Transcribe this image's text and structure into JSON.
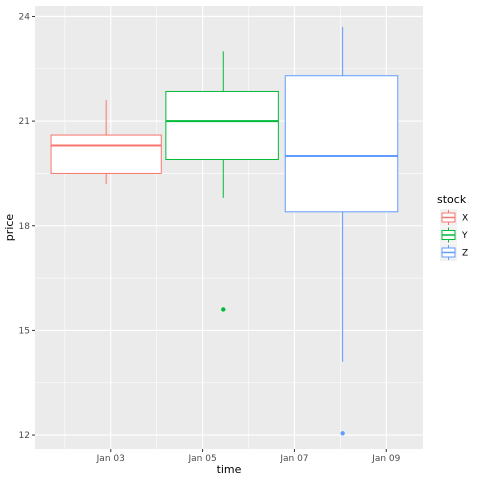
{
  "chart_data": {
    "type": "boxplot",
    "xlabel": "time",
    "ylabel": "price",
    "x_tick_labels": [
      "Jan 03",
      "Jan 05",
      "Jan 07",
      "Jan 09"
    ],
    "x_tick_values": [
      3,
      5,
      7,
      9
    ],
    "xlim": [
      1.35,
      9.8
    ],
    "y_ticks": [
      12,
      15,
      18,
      21,
      24
    ],
    "ylim": [
      11.6,
      24.3
    ],
    "grid": true,
    "legend": {
      "title": "stock",
      "placement": "right",
      "entries": [
        "X",
        "Y",
        "Z"
      ]
    },
    "series": [
      {
        "name": "X",
        "color": "#F8766D",
        "x_range": [
          1.7,
          4.1
        ],
        "x_center": 2.9,
        "whisker_low": 19.2,
        "q1": 19.5,
        "median": 20.3,
        "q3": 20.6,
        "whisker_high": 21.6,
        "outliers": []
      },
      {
        "name": "Y",
        "color": "#00BA38",
        "x_range": [
          4.2,
          6.65
        ],
        "x_center": 5.45,
        "whisker_low": 18.8,
        "q1": 19.9,
        "median": 21.0,
        "q3": 21.85,
        "whisker_high": 23.0,
        "outliers": [
          15.6
        ]
      },
      {
        "name": "Z",
        "color": "#619CFF",
        "x_range": [
          6.8,
          9.25
        ],
        "x_center": 8.05,
        "whisker_low": 14.1,
        "q1": 18.4,
        "median": 20.0,
        "q3": 22.3,
        "whisker_high": 23.7,
        "outliers": [
          12.05
        ]
      }
    ]
  }
}
